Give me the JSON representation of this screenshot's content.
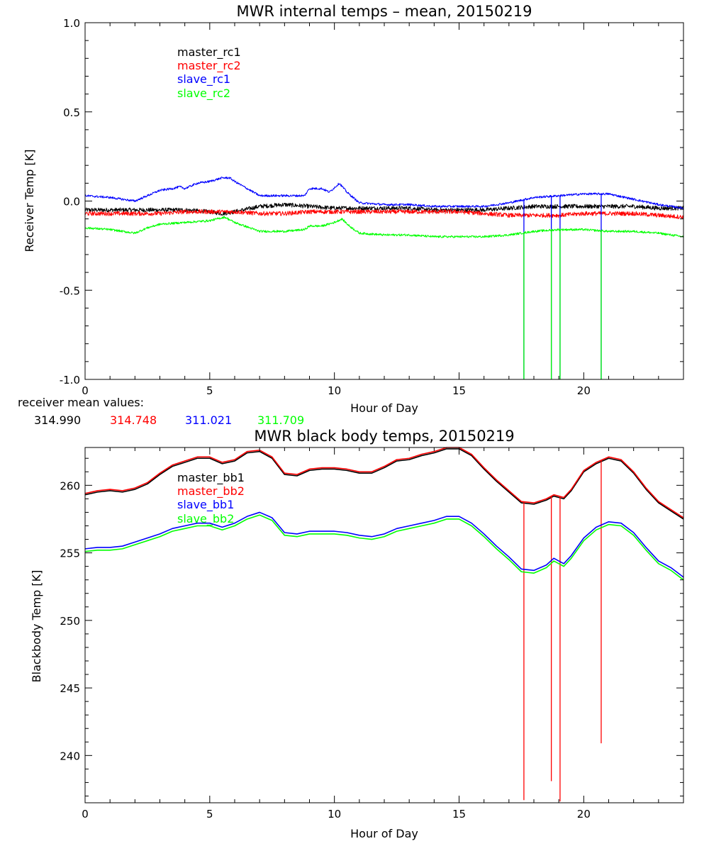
{
  "colors": {
    "black": "#000000",
    "red": "#ff0000",
    "blue": "#0000ff",
    "green": "#00ff00"
  },
  "top_panel": {
    "title": "MWR internal temps – mean, 20150219",
    "mean_values_label": "receiver mean values:",
    "mean_values": [
      "314.990",
      "314.748",
      "311.021",
      "311.709"
    ]
  },
  "bottom_panel": {
    "title": "MWR black body temps, 20150219"
  },
  "chart_data": [
    {
      "type": "line",
      "title": "MWR internal temps – mean, 20150219",
      "xlabel": "Hour of Day",
      "ylabel": "Receiver Temp [K]",
      "xlim": [
        0,
        24
      ],
      "ylim": [
        -1.0,
        1.0
      ],
      "xticks": [
        0,
        5,
        10,
        15,
        20
      ],
      "xtick_labels": [
        "0",
        "5",
        "10",
        "15",
        "20"
      ],
      "yticks": [
        -1.0,
        -0.5,
        0.0,
        0.5,
        1.0
      ],
      "ytick_labels": [
        "-1.0",
        "-0.5",
        "0.0",
        "0.5",
        "1.0"
      ],
      "legend_position": "top-left",
      "series": [
        {
          "name": "master_rc1",
          "color": "#000000",
          "noise": 0.012,
          "x": [
            0,
            1,
            2,
            3,
            4,
            5,
            5.5,
            6,
            7,
            8,
            9,
            10,
            11,
            12,
            13,
            14,
            15,
            16,
            17,
            18,
            19,
            20,
            21,
            22,
            23,
            24
          ],
          "y": [
            -0.05,
            -0.05,
            -0.05,
            -0.05,
            -0.05,
            -0.06,
            -0.07,
            -0.06,
            -0.03,
            -0.02,
            -0.03,
            -0.04,
            -0.04,
            -0.04,
            -0.04,
            -0.05,
            -0.05,
            -0.05,
            -0.04,
            -0.03,
            -0.03,
            -0.03,
            -0.03,
            -0.03,
            -0.04,
            -0.04
          ],
          "spikes": []
        },
        {
          "name": "master_rc2",
          "color": "#ff0000",
          "noise": 0.012,
          "x": [
            0,
            1,
            2,
            3,
            4,
            5,
            6,
            7,
            8,
            9,
            10,
            11,
            12,
            13,
            14,
            15,
            16,
            17,
            18,
            19,
            20,
            21,
            22,
            23,
            24
          ],
          "y": [
            -0.07,
            -0.07,
            -0.07,
            -0.07,
            -0.06,
            -0.06,
            -0.06,
            -0.07,
            -0.07,
            -0.06,
            -0.06,
            -0.06,
            -0.06,
            -0.06,
            -0.06,
            -0.06,
            -0.07,
            -0.08,
            -0.08,
            -0.08,
            -0.07,
            -0.07,
            -0.07,
            -0.08,
            -0.09
          ],
          "spikes": []
        },
        {
          "name": "slave_rc1",
          "color": "#0000ff",
          "noise": 0.006,
          "x": [
            0,
            1,
            1.5,
            2,
            2.5,
            3,
            3.5,
            3.8,
            4,
            4.5,
            5,
            5.5,
            5.8,
            6,
            6.5,
            7,
            8,
            8.8,
            9,
            9.5,
            9.8,
            10.2,
            10.5,
            11,
            12,
            13,
            14,
            15,
            16,
            17,
            18,
            19,
            20,
            21,
            22,
            23,
            24
          ],
          "y": [
            0.03,
            0.02,
            0.01,
            0.0,
            0.03,
            0.06,
            0.07,
            0.08,
            0.07,
            0.1,
            0.11,
            0.13,
            0.13,
            0.11,
            0.07,
            0.03,
            0.03,
            0.03,
            0.07,
            0.07,
            0.05,
            0.1,
            0.05,
            -0.01,
            -0.02,
            -0.02,
            -0.03,
            -0.03,
            -0.03,
            -0.01,
            0.02,
            0.03,
            0.04,
            0.04,
            0.01,
            -0.02,
            -0.04
          ],
          "spikes": [
            17.6,
            18.7,
            19.05,
            20.7
          ]
        },
        {
          "name": "slave_rc2",
          "color": "#00ff00",
          "noise": 0.006,
          "x": [
            0,
            1,
            2,
            2.5,
            3,
            4,
            5,
            5.6,
            6,
            7,
            8,
            8.8,
            9,
            9.5,
            10,
            10.3,
            10.6,
            11,
            12,
            13,
            14,
            15,
            16,
            17,
            18,
            19,
            20,
            21,
            22,
            23,
            24
          ],
          "y": [
            -0.15,
            -0.16,
            -0.18,
            -0.15,
            -0.13,
            -0.12,
            -0.11,
            -0.09,
            -0.12,
            -0.17,
            -0.17,
            -0.16,
            -0.14,
            -0.14,
            -0.12,
            -0.1,
            -0.14,
            -0.18,
            -0.19,
            -0.19,
            -0.2,
            -0.2,
            -0.2,
            -0.19,
            -0.17,
            -0.16,
            -0.16,
            -0.17,
            -0.17,
            -0.18,
            -0.2
          ],
          "spikes": [
            17.6,
            18.7,
            19.05,
            20.7
          ]
        }
      ]
    },
    {
      "type": "line",
      "title": "MWR black body temps, 20150219",
      "xlabel": "Hour of Day",
      "ylabel": "Blackbody Temp [K]",
      "xlim": [
        0,
        24
      ],
      "ylim": [
        236.5,
        262.8
      ],
      "xticks": [
        0,
        5,
        10,
        15,
        20
      ],
      "xtick_labels": [
        "0",
        "5",
        "10",
        "15",
        "20"
      ],
      "yticks": [
        240,
        245,
        250,
        255,
        260
      ],
      "ytick_labels": [
        "240",
        "245",
        "250",
        "255",
        "260"
      ],
      "legend_position": "top-left",
      "series": [
        {
          "name": "master_bb1",
          "color": "#000000",
          "x": [
            0,
            0.5,
            1,
            1.5,
            2,
            2.5,
            3,
            3.5,
            4,
            4.5,
            5,
            5.5,
            6,
            6.5,
            7,
            7.5,
            8,
            8.5,
            9,
            9.5,
            10,
            10.5,
            11,
            11.5,
            12,
            12.5,
            13,
            13.5,
            14,
            14.5,
            15,
            15.5,
            16,
            16.5,
            17,
            17.5,
            18,
            18.5,
            18.8,
            19,
            19.2,
            19.5,
            20,
            20.5,
            21,
            21.5,
            22,
            22.5,
            23,
            23.5,
            24
          ],
          "y": [
            259.3,
            259.5,
            259.6,
            259.5,
            259.7,
            260.1,
            260.8,
            261.4,
            261.7,
            262.0,
            262.0,
            261.6,
            261.8,
            262.4,
            262.5,
            262.0,
            260.8,
            260.7,
            261.1,
            261.2,
            261.2,
            261.1,
            260.9,
            260.9,
            261.3,
            261.8,
            261.9,
            262.2,
            262.4,
            262.7,
            262.7,
            262.2,
            261.2,
            260.3,
            259.5,
            258.7,
            258.6,
            258.9,
            259.2,
            259.1,
            259.0,
            259.6,
            261.0,
            261.6,
            262.0,
            261.8,
            260.9,
            259.7,
            258.7,
            258.1,
            257.5
          ],
          "spikes": []
        },
        {
          "name": "master_bb2",
          "color": "#ff0000",
          "x": [
            0,
            0.5,
            1,
            1.5,
            2,
            2.5,
            3,
            3.5,
            4,
            4.5,
            5,
            5.5,
            6,
            6.5,
            7,
            7.5,
            8,
            8.5,
            9,
            9.5,
            10,
            10.5,
            11,
            11.5,
            12,
            12.5,
            13,
            13.5,
            14,
            14.5,
            15,
            15.5,
            16,
            16.5,
            17,
            17.5,
            18,
            18.5,
            18.8,
            19,
            19.2,
            19.5,
            20,
            20.5,
            21,
            21.5,
            22,
            22.5,
            23,
            23.5,
            24
          ],
          "y": [
            259.4,
            259.6,
            259.7,
            259.6,
            259.8,
            260.2,
            260.9,
            261.5,
            261.8,
            262.1,
            262.1,
            261.7,
            261.9,
            262.5,
            262.6,
            262.1,
            260.9,
            260.8,
            261.2,
            261.3,
            261.3,
            261.2,
            261.0,
            261.0,
            261.4,
            261.9,
            262.0,
            262.3,
            262.5,
            262.8,
            262.8,
            262.3,
            261.3,
            260.4,
            259.6,
            258.8,
            258.7,
            259.0,
            259.3,
            259.2,
            259.1,
            259.7,
            261.1,
            261.7,
            262.1,
            261.9,
            261.0,
            259.8,
            258.8,
            258.2,
            257.6
          ],
          "spikes": [
            17.6,
            18.7,
            19.05,
            20.7
          ],
          "spike_floor": [
            236.7,
            238.1,
            236.6,
            240.9
          ]
        },
        {
          "name": "slave_bb1",
          "color": "#0000ff",
          "x": [
            0,
            0.5,
            1,
            1.5,
            2,
            2.5,
            3,
            3.5,
            4,
            4.5,
            5,
            5.5,
            6,
            6.5,
            7,
            7.5,
            8,
            8.5,
            9,
            9.5,
            10,
            10.5,
            11,
            11.5,
            12,
            12.5,
            13,
            13.5,
            14,
            14.5,
            15,
            15.5,
            16,
            16.5,
            17,
            17.5,
            18,
            18.5,
            18.8,
            19,
            19.2,
            19.5,
            20,
            20.5,
            21,
            21.5,
            22,
            22.5,
            23,
            23.5,
            24
          ],
          "y": [
            255.3,
            255.4,
            255.4,
            255.5,
            255.8,
            256.1,
            256.4,
            256.8,
            257.0,
            257.2,
            257.2,
            256.9,
            257.2,
            257.7,
            258.0,
            257.6,
            256.5,
            256.4,
            256.6,
            256.6,
            256.6,
            256.5,
            256.3,
            256.2,
            256.4,
            256.8,
            257.0,
            257.2,
            257.4,
            257.7,
            257.7,
            257.2,
            256.4,
            255.5,
            254.7,
            253.8,
            253.7,
            254.1,
            254.6,
            254.4,
            254.2,
            254.8,
            256.1,
            256.9,
            257.3,
            257.2,
            256.5,
            255.4,
            254.4,
            253.9,
            253.2
          ],
          "spikes": []
        },
        {
          "name": "slave_bb2",
          "color": "#00ff00",
          "x": [
            0,
            0.5,
            1,
            1.5,
            2,
            2.5,
            3,
            3.5,
            4,
            4.5,
            5,
            5.5,
            6,
            6.5,
            7,
            7.5,
            8,
            8.5,
            9,
            9.5,
            10,
            10.5,
            11,
            11.5,
            12,
            12.5,
            13,
            13.5,
            14,
            14.5,
            15,
            15.5,
            16,
            16.5,
            17,
            17.5,
            18,
            18.5,
            18.8,
            19,
            19.2,
            19.5,
            20,
            20.5,
            21,
            21.5,
            22,
            22.5,
            23,
            23.5,
            24
          ],
          "y": [
            255.1,
            255.2,
            255.2,
            255.3,
            255.6,
            255.9,
            256.2,
            256.6,
            256.8,
            257.0,
            257.0,
            256.7,
            257.0,
            257.5,
            257.8,
            257.4,
            256.3,
            256.2,
            256.4,
            256.4,
            256.4,
            256.3,
            256.1,
            256.0,
            256.2,
            256.6,
            256.8,
            257.0,
            257.2,
            257.5,
            257.5,
            257.0,
            256.2,
            255.3,
            254.5,
            253.6,
            253.5,
            253.9,
            254.4,
            254.2,
            254.0,
            254.6,
            255.9,
            256.7,
            257.1,
            257.0,
            256.3,
            255.2,
            254.2,
            253.7,
            253.0
          ],
          "spikes": []
        }
      ]
    }
  ]
}
